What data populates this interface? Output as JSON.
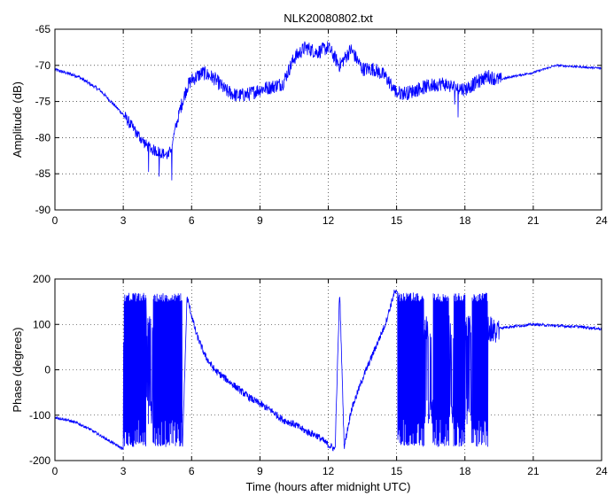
{
  "chart_data": [
    {
      "type": "line",
      "title": "NLK20080802.txt",
      "xlabel": "",
      "ylabel": "Amplitude (dB)",
      "xlim": [
        0,
        24
      ],
      "ylim": [
        -90,
        -65
      ],
      "xticks": [
        0,
        3,
        6,
        9,
        12,
        15,
        18,
        21,
        24
      ],
      "yticks": [
        -90,
        -85,
        -80,
        -75,
        -70,
        -65
      ],
      "grid": true,
      "color": "#0000ff",
      "x": [
        0,
        1,
        2,
        3,
        3.5,
        4,
        4.3,
        4.6,
        5,
        5.2,
        5.5,
        5.8,
        6,
        6.5,
        7,
        7.5,
        8,
        8.5,
        9,
        9.5,
        10,
        10.5,
        11,
        11.5,
        12,
        12.5,
        13,
        13.5,
        14,
        14.5,
        15,
        15.5,
        16,
        16.5,
        17,
        17.5,
        18,
        18.5,
        19,
        19.5,
        20,
        21,
        21.5,
        22,
        23,
        24
      ],
      "y": [
        -70.6,
        -71.5,
        -73.5,
        -76.8,
        -79,
        -81,
        -81.7,
        -82,
        -82.5,
        -80,
        -76,
        -73,
        -72,
        -71,
        -71.8,
        -73.5,
        -74.2,
        -74,
        -73.3,
        -73,
        -72.5,
        -69,
        -67.5,
        -68.2,
        -67.5,
        -70,
        -67.8,
        -70.5,
        -70.5,
        -71.5,
        -73.8,
        -73.8,
        -73.2,
        -72.8,
        -72.5,
        -73,
        -73.3,
        -72.4,
        -71.5,
        -72,
        -71.6,
        -71,
        -70.5,
        -70,
        -70.2,
        -70.4
      ]
    },
    {
      "type": "line",
      "title": "",
      "xlabel": "Time (hours after midnight UTC)",
      "ylabel": "Phase (degrees)",
      "xlim": [
        0,
        24
      ],
      "ylim": [
        -200,
        200
      ],
      "xticks": [
        0,
        3,
        6,
        9,
        12,
        15,
        18,
        21,
        24
      ],
      "yticks": [
        -200,
        -100,
        0,
        100,
        200
      ],
      "grid": true,
      "color": "#0000ff",
      "x": [
        0,
        0.5,
        1,
        1.5,
        2,
        2.5,
        3,
        3.02,
        5.6,
        5.8,
        6.2,
        6.6,
        7,
        7.5,
        8,
        8.5,
        9,
        9.5,
        10,
        10.5,
        11,
        11.5,
        12,
        12.3,
        12.5,
        12.7,
        13,
        13.5,
        14,
        14.5,
        14.9,
        15.05,
        19.5,
        20,
        21,
        22,
        23,
        24
      ],
      "y": [
        -105,
        -110,
        -118,
        -130,
        -145,
        -160,
        -175,
        175,
        -170,
        160,
        80,
        30,
        0,
        -20,
        -40,
        -60,
        -75,
        -90,
        -110,
        -120,
        -135,
        -145,
        -165,
        -175,
        175,
        -170,
        -90,
        -20,
        40,
        100,
        170,
        170,
        92,
        95,
        100,
        97,
        95,
        90
      ]
    }
  ]
}
